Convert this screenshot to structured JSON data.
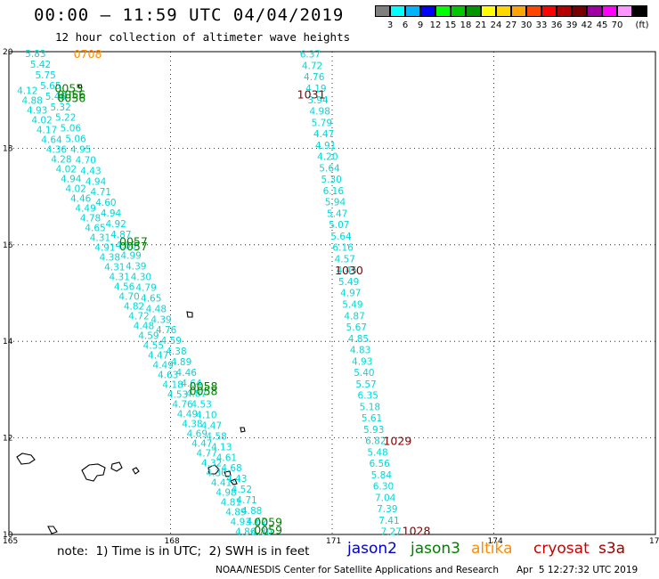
{
  "header": {
    "title": "00:00 — 11:59 UTC 04/04/2019",
    "subtitle": "12 hour collection of altimeter wave heights"
  },
  "legend": {
    "unit": "(ft)",
    "bins": [
      {
        "label": "",
        "color": "#7f7f7f"
      },
      {
        "label": "3",
        "color": "#00ffff"
      },
      {
        "label": "6",
        "color": "#00b4ff"
      },
      {
        "label": "9",
        "color": "#0000ff"
      },
      {
        "label": "12",
        "color": "#00ff00"
      },
      {
        "label": "15",
        "color": "#00c800"
      },
      {
        "label": "18",
        "color": "#009600"
      },
      {
        "label": "21",
        "color": "#ffff00"
      },
      {
        "label": "24",
        "color": "#ffd700"
      },
      {
        "label": "27",
        "color": "#ffa500"
      },
      {
        "label": "30",
        "color": "#ff4500"
      },
      {
        "label": "33",
        "color": "#ff0000"
      },
      {
        "label": "36",
        "color": "#b40000"
      },
      {
        "label": "39",
        "color": "#780000"
      },
      {
        "label": "42",
        "color": "#a000a0"
      },
      {
        "label": "45",
        "color": "#ff00ff"
      },
      {
        "label": "70",
        "color": "#ff96ff"
      },
      {
        "label": "",
        "color": "#000000"
      }
    ]
  },
  "map": {
    "lon_range": [
      165,
      177
    ],
    "lat_range": [
      10,
      20
    ],
    "lon_ticks": [
      "165",
      "168",
      "171",
      "174",
      "177"
    ],
    "lat_ticks": [
      "10",
      "12",
      "14",
      "16",
      "18",
      "20"
    ]
  },
  "chart_data": {
    "type": "scatter",
    "title": "00:00 — 11:59 UTC 04/04/2019",
    "subtitle": "12 hour collection of altimeter wave heights",
    "x_axis": "longitude",
    "y_axis": "latitude",
    "xlim": [
      165,
      177
    ],
    "ylim": [
      10,
      20
    ],
    "colors": {
      "jason3": "#008000",
      "altika": "#ff8c00",
      "cryosat": "#800000",
      "values": "#00d8d8"
    },
    "pass_times": [
      {
        "label": "0708",
        "lon": 166.2,
        "lat": 19.96,
        "satellite": "altika"
      },
      {
        "label": "0055",
        "lon": 165.85,
        "lat": 19.25,
        "satellite": "jason3"
      },
      {
        "label": "0056",
        "lon": 165.9,
        "lat": 19.12,
        "satellite": "jason3"
      },
      {
        "label": "0056",
        "lon": 165.9,
        "lat": 19.05,
        "satellite": "jason3"
      },
      {
        "label": "1031",
        "lon": 170.35,
        "lat": 19.12,
        "satellite": "cryosat"
      },
      {
        "label": "0057",
        "lon": 167.05,
        "lat": 16.08,
        "satellite": "jason3"
      },
      {
        "label": "0057",
        "lon": 167.05,
        "lat": 15.98,
        "satellite": "jason3"
      },
      {
        "label": "1030",
        "lon": 171.05,
        "lat": 15.48,
        "satellite": "cryosat"
      },
      {
        "label": "0058",
        "lon": 168.35,
        "lat": 13.08,
        "satellite": "jason3"
      },
      {
        "label": "0058",
        "lon": 168.35,
        "lat": 12.98,
        "satellite": "jason3"
      },
      {
        "label": "1029",
        "lon": 171.95,
        "lat": 11.95,
        "satellite": "cryosat"
      },
      {
        "label": "0059",
        "lon": 169.55,
        "lat": 10.27,
        "satellite": "jason3"
      },
      {
        "label": "0059",
        "lon": 169.55,
        "lat": 10.1,
        "satellite": "jason3"
      },
      {
        "label": "1028",
        "lon": 172.3,
        "lat": 10.08,
        "satellite": "cryosat"
      }
    ],
    "tracks": [
      {
        "name": "east",
        "values": [
          "6.37",
          "4.72",
          "4.76",
          "4.19",
          "3.94",
          "4.98",
          "5.79",
          "4.47",
          "4.91",
          "4.20",
          "5.64",
          "5.30",
          "6.16",
          "5.94",
          "5.47",
          "5.07",
          "5.64",
          "6.16",
          "4.57",
          "4.45",
          "5.49",
          "4.97",
          "5.49",
          "4.87",
          "5.67",
          "4.85",
          "4.83",
          "4.93",
          "5.40",
          "5.57",
          "6.35",
          "5.18",
          "5.61",
          "5.93",
          "6.82",
          "5.48",
          "6.56",
          "5.84",
          "6.30",
          "7.04",
          "7.39",
          "7.41",
          "7.27"
        ],
        "lon": [
          170.4,
          171.9
        ],
        "lat": [
          19.95,
          10.06
        ]
      },
      {
        "name": "west-a",
        "values": [
          "5.83",
          "5.42",
          "5.75",
          "5.65",
          "5.46",
          "5.32",
          "5.22",
          "5.06",
          "5.06",
          "4.95",
          "4.70",
          "4.43",
          "4.94",
          "4.71",
          "4.60",
          "4.94",
          "4.92",
          "4.87",
          "4.68",
          "4.99",
          "4.39",
          "4.30",
          "4.79",
          "4.65",
          "4.48",
          "4.39",
          "4.76",
          "4.59",
          "4.38",
          "4.89",
          "4.46",
          "4.64",
          "4.87",
          "4.53",
          "4.10",
          "4.47",
          "4.58",
          "4.13",
          "4.61",
          "4.68",
          "4.43",
          "4.52",
          "4.71",
          "4.88",
          "4.62",
          "4.80"
        ],
        "lon": [
          165.3,
          169.5
        ],
        "lat": [
          19.96,
          10.06
        ]
      },
      {
        "name": "west-b",
        "values": [
          "4.12",
          "4.88",
          "4.93",
          "4.02",
          "4.17",
          "4.64",
          "4.36",
          "4.28",
          "4.02",
          "4.94",
          "4.02",
          "4.46",
          "4.49",
          "4.78",
          "4.65",
          "4.31",
          "4.91",
          "4.38",
          "4.31",
          "4.31",
          "4.56",
          "4.70",
          "4.82",
          "4.72",
          "4.48",
          "4.59",
          "4.55",
          "4.47",
          "4.49",
          "4.63",
          "4.18",
          "4.53",
          "4.76",
          "4.49",
          "4.38",
          "4.69",
          "4.47",
          "4.77",
          "4.32",
          "4.30",
          "4.41",
          "4.98",
          "4.81",
          "4.89",
          "4.93",
          "4.86"
        ],
        "lon": [
          165.15,
          169.2
        ],
        "lat": [
          19.2,
          10.06
        ]
      }
    ]
  },
  "footer": {
    "note": "note:  1) Time is in UTC;  2) SWH is in feet",
    "satellites": [
      {
        "name": "jason2",
        "color": "#0000cc"
      },
      {
        "name": "jason3",
        "color": "#008000"
      },
      {
        "name": "altika",
        "color": "#ff8c00"
      },
      {
        "name": "cryosat",
        "color": "#cc0000"
      },
      {
        "name": "s3a",
        "color": "#a00000"
      }
    ],
    "credit": "NOAA/NESDIS Center for Satellite Applications and Research",
    "generated": "Apr  5 12:27:32 UTC 2019"
  }
}
